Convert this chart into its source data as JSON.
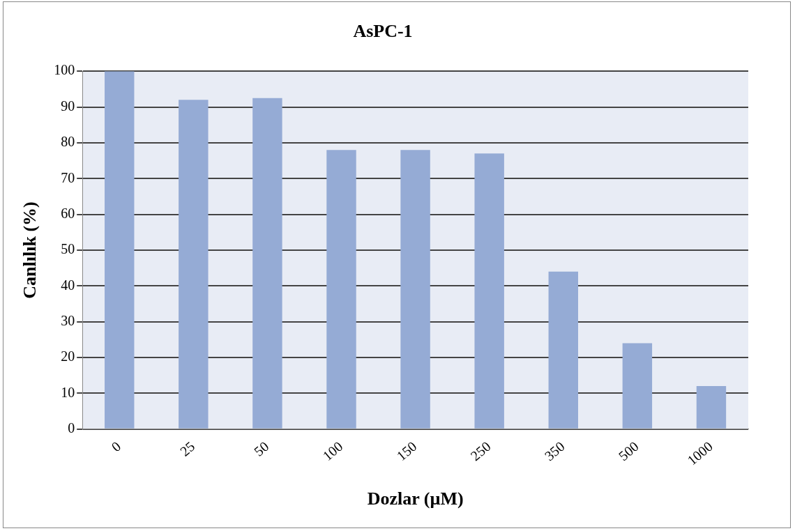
{
  "chart_data": {
    "type": "bar",
    "title": "AsPC-1",
    "xlabel": "Dozlar (µM)",
    "ylabel": "Canlılık (%)",
    "categories": [
      "0",
      "25",
      "50",
      "100",
      "150",
      "250",
      "350",
      "500",
      "1000"
    ],
    "values": [
      100,
      92,
      92.5,
      78,
      78,
      77,
      44,
      24,
      12
    ],
    "color": "#95abd5",
    "ylim": [
      0,
      100
    ],
    "yticks": [
      0,
      10,
      20,
      30,
      40,
      50,
      60,
      70,
      80,
      90,
      100
    ],
    "grid": "y",
    "legend": false
  }
}
